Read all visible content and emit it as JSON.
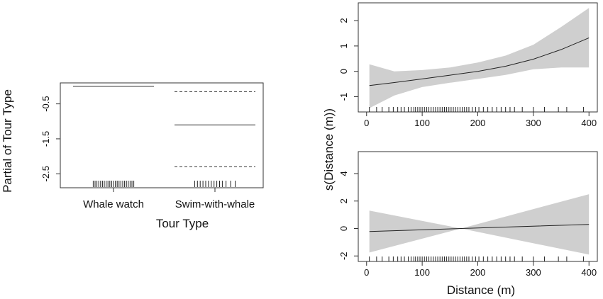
{
  "chart_data": [
    {
      "type": "line",
      "panel": "left",
      "xlabel": "Tour Type",
      "ylabel": "Partial of Tour Type",
      "categories": [
        "Whale watch",
        "Swim-with-whale"
      ],
      "y_ticks": [
        "-0.5",
        "-1.5",
        "-2.5"
      ],
      "y_tick_values": [
        -0.5,
        -1.5,
        -2.5
      ],
      "ylim": [
        -2.9,
        0.1
      ],
      "series": [
        {
          "values": [
            0.0,
            -1.1
          ]
        },
        {
          "values": [
            null,
            -0.15
          ]
        },
        {
          "values": [
            null,
            -2.3
          ]
        }
      ],
      "rug_whale_watch": [
        -0.22,
        -0.2,
        -0.18,
        -0.16,
        -0.14,
        -0.12,
        -0.1,
        -0.08,
        -0.06,
        -0.04,
        -0.02,
        0.0,
        0.02,
        0.04,
        0.06,
        0.08,
        0.1,
        0.12,
        0.14,
        0.16,
        0.18,
        0.2,
        0.22
      ],
      "rug_swim": [
        -0.22,
        -0.19,
        -0.16,
        -0.13,
        -0.1,
        -0.07,
        -0.04,
        -0.01,
        0.02,
        0.05,
        0.08,
        0.12,
        0.17,
        0.22
      ],
      "grid": false
    },
    {
      "type": "area",
      "panel": "right-top",
      "xlabel": "",
      "ylabel": "",
      "x_ticks": [
        "0",
        "100",
        "200",
        "300",
        "400"
      ],
      "x_tick_values": [
        0,
        100,
        200,
        300,
        400
      ],
      "y_ticks": [
        "-1",
        "0",
        "1",
        "2"
      ],
      "y_tick_values": [
        -1,
        0,
        1,
        2
      ],
      "xlim": [
        -15,
        415
      ],
      "ylim": [
        -1.6,
        2.7
      ],
      "x": [
        5,
        50,
        100,
        150,
        200,
        250,
        300,
        350,
        400
      ],
      "fit": [
        -0.56,
        -0.44,
        -0.3,
        -0.15,
        0.0,
        0.2,
        0.48,
        0.86,
        1.32
      ],
      "lower": [
        -1.45,
        -0.95,
        -0.62,
        -0.45,
        -0.3,
        -0.14,
        0.08,
        0.15,
        0.15
      ],
      "upper": [
        0.28,
        0.0,
        0.05,
        0.15,
        0.35,
        0.62,
        1.05,
        1.75,
        2.5
      ],
      "rug": [
        5,
        18,
        28,
        40,
        48,
        56,
        62,
        68,
        75,
        80,
        85,
        88,
        92,
        96,
        100,
        104,
        108,
        112,
        116,
        120,
        124,
        128,
        132,
        136,
        140,
        144,
        148,
        152,
        156,
        160,
        164,
        168,
        172,
        176,
        180,
        184,
        190,
        196,
        202,
        210,
        218,
        226,
        234,
        242,
        250,
        258,
        266,
        280,
        300,
        320,
        345,
        360,
        390
      ],
      "grid": false
    },
    {
      "type": "area",
      "panel": "right-bottom",
      "xlabel": "Distance (m)",
      "ylabel": "s(Distance (m))",
      "x_ticks": [
        "0",
        "100",
        "200",
        "300",
        "400"
      ],
      "x_tick_values": [
        0,
        100,
        200,
        300,
        400
      ],
      "y_ticks": [
        "-2",
        "0",
        "2",
        "4"
      ],
      "y_tick_values": [
        -2,
        0,
        2,
        4
      ],
      "xlim": [
        -15,
        415
      ],
      "ylim": [
        -2.4,
        5.6
      ],
      "x": [
        5,
        170,
        400
      ],
      "fit": [
        -0.22,
        0.0,
        0.3
      ],
      "lower": [
        -1.75,
        0.0,
        -1.9
      ],
      "upper": [
        1.3,
        0.0,
        2.5
      ],
      "rug": [
        5,
        18,
        28,
        40,
        48,
        56,
        62,
        68,
        75,
        80,
        85,
        88,
        92,
        96,
        100,
        104,
        108,
        112,
        116,
        120,
        124,
        128,
        132,
        136,
        140,
        144,
        148,
        152,
        156,
        160,
        164,
        168,
        172,
        176,
        180,
        184,
        190,
        196,
        202,
        210,
        218,
        226,
        234,
        242,
        250,
        258,
        266,
        280,
        300,
        320,
        345,
        360,
        390
      ],
      "grid": false
    }
  ]
}
